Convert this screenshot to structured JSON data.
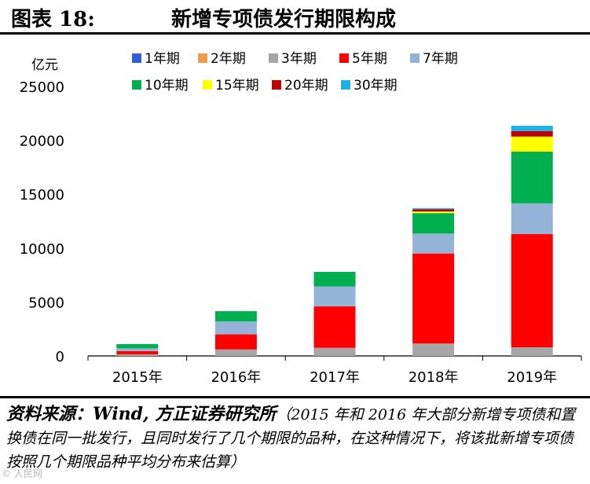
{
  "header": {
    "figure_label": "图表 18:",
    "title": "新增专项债发行期限构成"
  },
  "chart_data": {
    "type": "bar",
    "stacked": true,
    "title": "新增专项债发行期限构成",
    "unit_label": "亿元",
    "categories": [
      "2015年",
      "2016年",
      "2017年",
      "2018年",
      "2019年"
    ],
    "yticks": [
      "25000",
      "20000",
      "15000",
      "10000",
      "5000",
      "0"
    ],
    "ylim": [
      0,
      25000
    ],
    "legend_position": "top",
    "series": [
      {
        "name": "1年期",
        "color": "#2E5FD3",
        "values": [
          0,
          0,
          0,
          0,
          0
        ]
      },
      {
        "name": "2年期",
        "color": "#F39A4B",
        "values": [
          0,
          0,
          0,
          0,
          0
        ]
      },
      {
        "name": "3年期",
        "color": "#A6A6A6",
        "values": [
          150,
          600,
          750,
          1150,
          800
        ]
      },
      {
        "name": "5年期",
        "color": "#FF0000",
        "values": [
          300,
          1400,
          3850,
          8350,
          10500
        ]
      },
      {
        "name": "7年期",
        "color": "#95B3D7",
        "values": [
          250,
          1200,
          1850,
          1850,
          2850
        ]
      },
      {
        "name": "10年期",
        "color": "#00B050",
        "values": [
          400,
          950,
          1350,
          1900,
          4800
        ]
      },
      {
        "name": "15年期",
        "color": "#FFFF00",
        "values": [
          0,
          0,
          0,
          150,
          1400
        ]
      },
      {
        "name": "20年期",
        "color": "#C00000",
        "values": [
          0,
          0,
          0,
          200,
          500
        ]
      },
      {
        "name": "30年期",
        "color": "#1FB0E8",
        "values": [
          0,
          0,
          0,
          100,
          500
        ]
      }
    ]
  },
  "source": {
    "lead": "资料来源：Wind, 方正证券研究所",
    "note": "（2015 年和 2016 年大部分新增专项债和置换债在同一批发行，且同时发行了几个期限的品种，在这种情况下，将该批新增专项债按照几个期限品种平均分布来估算）"
  },
  "watermark": "© 人民网"
}
